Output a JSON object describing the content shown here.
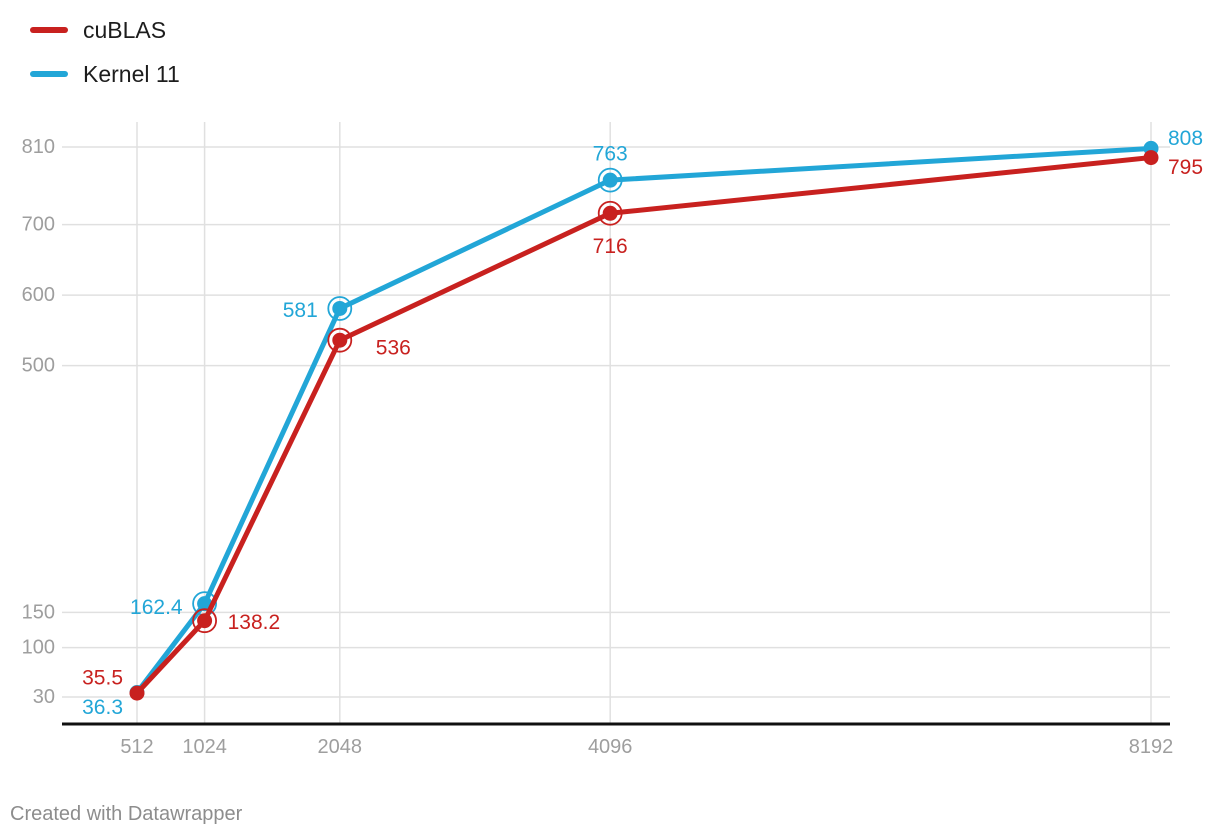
{
  "chart_data": {
    "type": "line",
    "x": [
      512,
      1024,
      2048,
      4096,
      8192
    ],
    "x_tick_labels": [
      "512",
      "1024",
      "2048",
      "4096",
      "8192"
    ],
    "y_ticks": [
      30,
      100,
      150,
      500,
      600,
      700,
      810
    ],
    "ylim": [
      30,
      845
    ],
    "xlabel": "",
    "ylabel": "",
    "grid": true,
    "legend_position": "top-left",
    "series": [
      {
        "name": "cuBLAS",
        "color": "#c8211f",
        "values": [
          35.5,
          138.2,
          536,
          716,
          795
        ],
        "point_labels": [
          "35.5",
          "138.2",
          "536",
          "716",
          "795"
        ]
      },
      {
        "name": "Kernel 11",
        "color": "#22a6d7",
        "values": [
          36.3,
          162.4,
          581,
          763,
          808
        ],
        "point_labels": [
          "36.3",
          "162.4",
          "581",
          "763",
          "808"
        ]
      }
    ],
    "colors": {
      "grid": "#e0e0e0",
      "axis": "#101010",
      "tick_label": "#9e9e9e"
    }
  },
  "footer": {
    "credit": "Created with Datawrapper"
  }
}
